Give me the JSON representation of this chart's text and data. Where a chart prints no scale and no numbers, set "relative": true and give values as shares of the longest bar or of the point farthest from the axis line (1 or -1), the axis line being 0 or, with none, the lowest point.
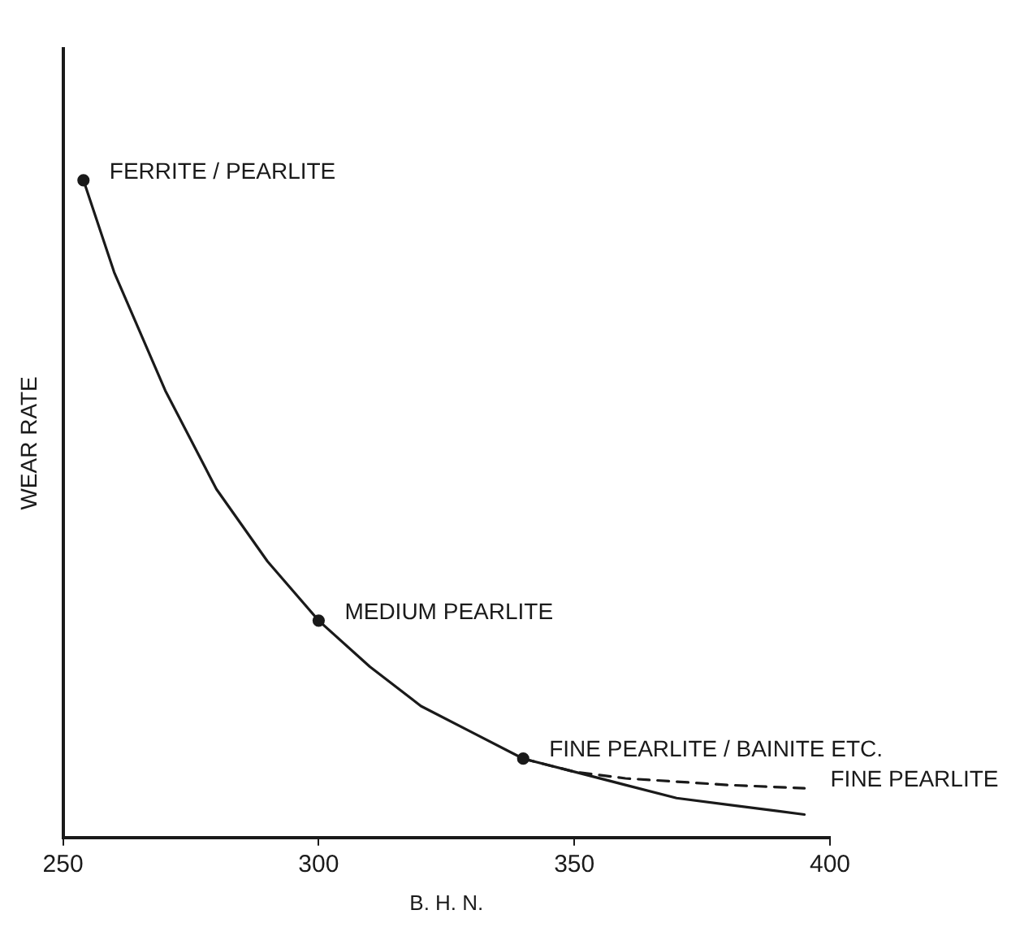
{
  "chart_data": {
    "type": "line",
    "xlabel": "B. H. N.",
    "ylabel": "WEAR RATE",
    "relative": true,
    "xlim": [
      250,
      400
    ],
    "xticks": [
      250,
      300,
      350,
      400
    ],
    "grid": false,
    "legend": false,
    "tick_labels": "x",
    "series": [
      {
        "color": "#1a1a1a",
        "line_style": "solid",
        "marker": "none",
        "x": [
          254,
          260,
          270,
          280,
          290,
          300,
          310,
          320,
          330,
          340,
          350,
          360,
          370,
          380,
          390,
          395
        ],
        "values": [
          1.0,
          0.86,
          0.68,
          0.53,
          0.42,
          0.33,
          0.26,
          0.2,
          0.16,
          0.12,
          0.1,
          0.08,
          0.06,
          0.05,
          0.04,
          0.035
        ]
      },
      {
        "color": "#1a1a1a",
        "line_style": "dashed",
        "marker": "none",
        "x": [
          340,
          350,
          360,
          370,
          380,
          395
        ],
        "values": [
          0.12,
          0.1,
          0.09,
          0.085,
          0.08,
          0.075
        ]
      },
      {
        "type": "scatter",
        "color": "#1a1a1a",
        "marker": "circle",
        "x": [
          254,
          300,
          340
        ],
        "values": [
          1.0,
          0.33,
          0.12
        ]
      }
    ],
    "annotations": [
      {
        "text": "FERRITE / PEARLITE",
        "x": 254,
        "y": 1.0
      },
      {
        "text": "MEDIUM PEARLITE",
        "x": 300,
        "y": 0.33
      },
      {
        "text": "FINE PEARLITE / BAINITE ETC.",
        "x": 340,
        "y": 0.12
      },
      {
        "text": "FINE PEARLITE",
        "x": 395,
        "y": 0.075
      }
    ]
  }
}
